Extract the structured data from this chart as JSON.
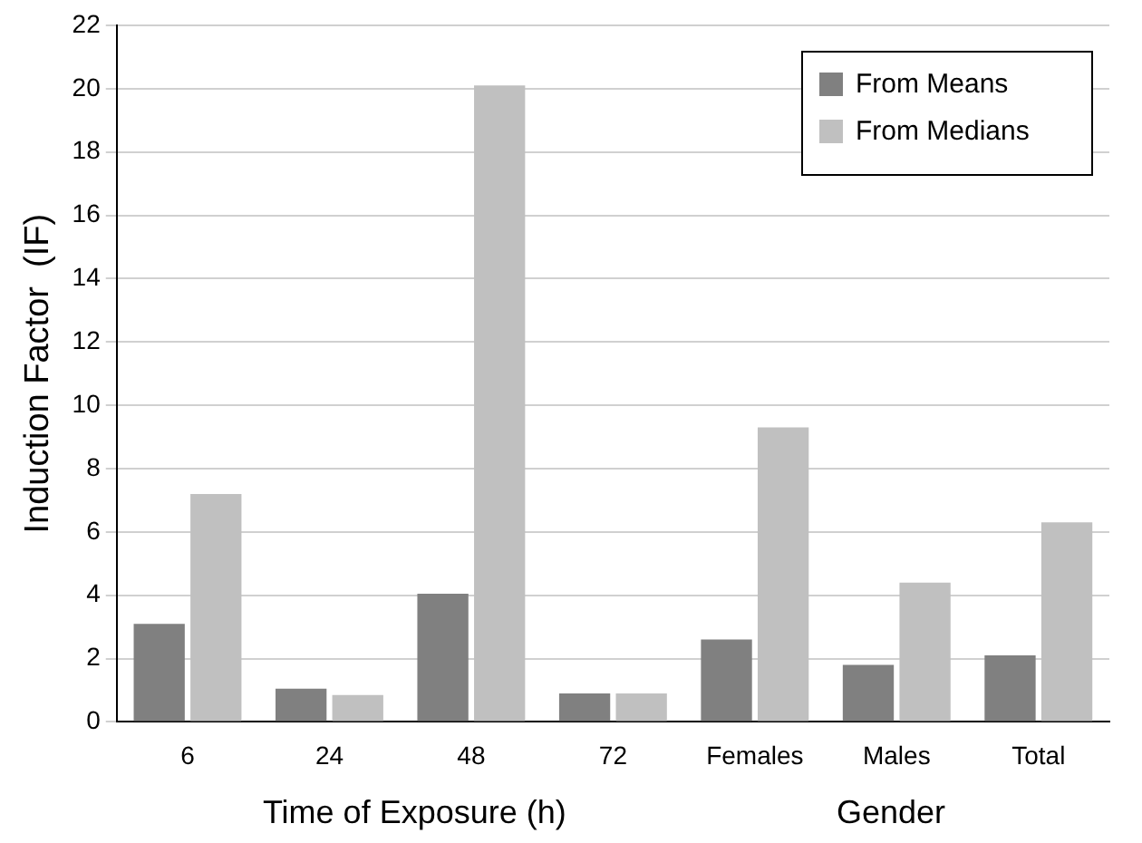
{
  "chart_data": {
    "type": "bar",
    "ylabel": "Induction Factor  (IF)",
    "xlabel": "Time of Exposure (h)",
    "annotations": [
      "Gender"
    ],
    "categories": [
      "6",
      "24",
      "48",
      "72",
      "Females",
      "Males",
      "Total"
    ],
    "series": [
      {
        "name": "From Means",
        "color": "#808080",
        "values": [
          3.1,
          1.05,
          4.05,
          0.9,
          2.6,
          1.8,
          2.1
        ]
      },
      {
        "name": "From Medians",
        "color": "#c0c0c0",
        "values": [
          7.2,
          0.85,
          20.1,
          0.9,
          9.3,
          4.4,
          6.3
        ]
      }
    ],
    "ylim": [
      0,
      22
    ],
    "yticks": [
      0,
      2,
      4,
      6,
      8,
      10,
      12,
      14,
      16,
      18,
      20,
      22
    ],
    "grid": "y",
    "legend": "top right"
  }
}
